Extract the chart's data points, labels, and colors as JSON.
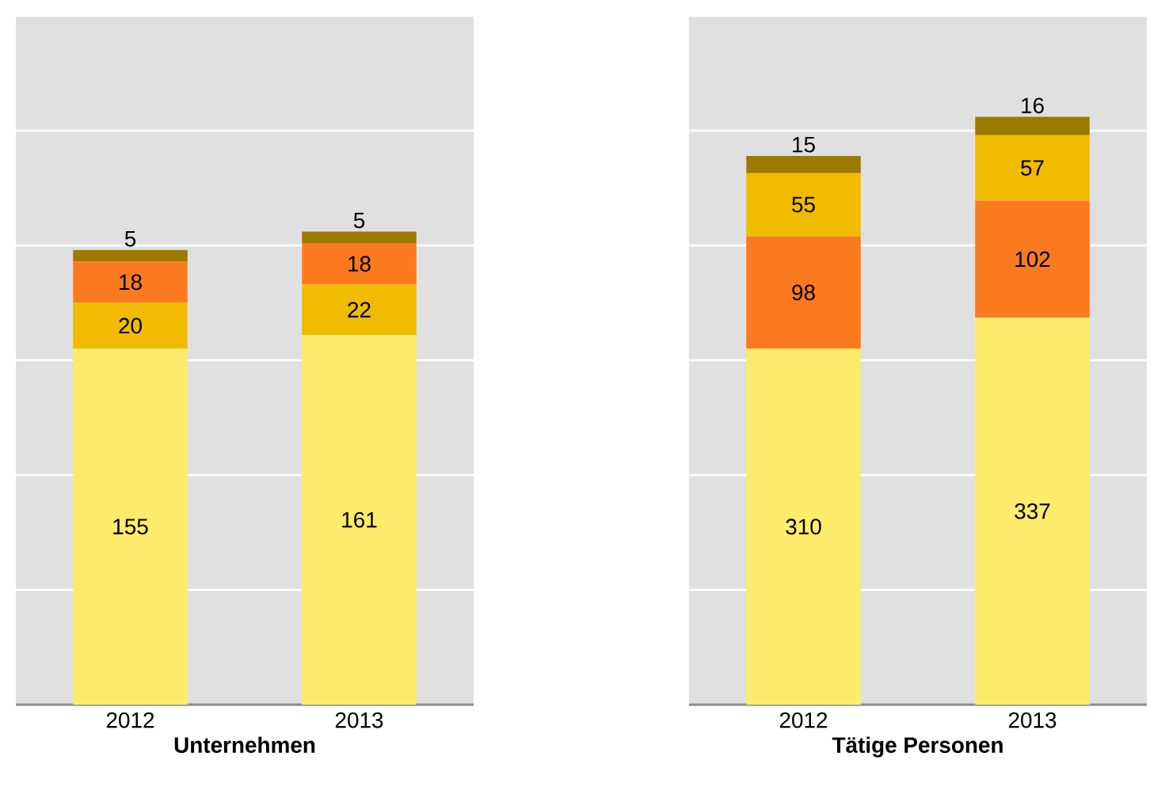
{
  "chart_data": [
    {
      "type": "bar",
      "stacked": true,
      "categories": [
        "2012",
        "2013"
      ],
      "xlabel": "**Unternehmen**",
      "ylim": [
        0,
        300
      ],
      "yticks": [
        {
          "value": 50,
          "label": null
        },
        {
          "value": 100,
          "label": null
        },
        {
          "value": 150,
          "label": null
        },
        {
          "value": 200,
          "label": null
        },
        {
          "value": 250,
          "label": null
        },
        {
          "value": 300,
          "label": null
        }
      ],
      "grid": "y",
      "tick_labels": "x",
      "data_labels": true,
      "series": [
        {
          "color": "#fdeb6b",
          "values": [
            155,
            161
          ]
        },
        {
          "color": "#f0bb00",
          "values": [
            20,
            22
          ]
        },
        {
          "color": "#fc7a1e",
          "values": [
            18,
            18
          ]
        },
        {
          "color": "#9c7a00",
          "values": [
            5,
            5
          ]
        }
      ]
    },
    {
      "type": "bar",
      "stacked": true,
      "categories": [
        "2012",
        "2013"
      ],
      "xlabel": "**Tätige Personen**",
      "ylim": [
        0,
        600
      ],
      "yticks": [
        {
          "value": 100,
          "label": null
        },
        {
          "value": 200,
          "label": null
        },
        {
          "value": 300,
          "label": null
        },
        {
          "value": 400,
          "label": null
        },
        {
          "value": 500,
          "label": null
        },
        {
          "value": 600,
          "label": null
        }
      ],
      "grid": "y",
      "tick_labels": "x",
      "data_labels": true,
      "series": [
        {
          "color": "#fdeb6b",
          "values": [
            310,
            337
          ]
        },
        {
          "color": "#fc7a1e",
          "values": [
            98,
            102
          ]
        },
        {
          "color": "#f0bb00",
          "values": [
            55,
            57
          ]
        },
        {
          "color": "#9c7a00",
          "values": [
            15,
            16
          ]
        }
      ]
    }
  ]
}
